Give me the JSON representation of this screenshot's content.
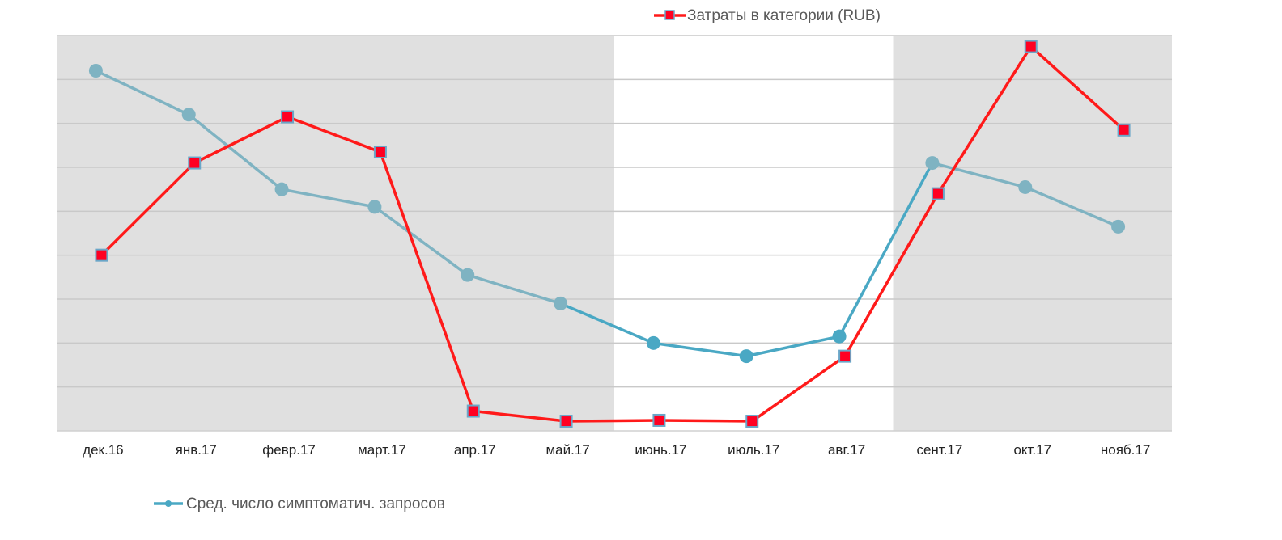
{
  "chart_data": {
    "type": "line",
    "categories": [
      "дек.16",
      "янв.17",
      "февр.17",
      "март.17",
      "апр.17",
      "май.17",
      "июнь.17",
      "июль.17",
      "авг.17",
      "сент.17",
      "окт.17",
      "нояб.17"
    ],
    "series": [
      {
        "name": "Затраты в категории (RUB)",
        "color": "#ff1a1a",
        "marker": "square",
        "marker_fill": "#ff0022",
        "marker_stroke": "#6aa6c8",
        "values": [
          4.0,
          6.1,
          7.15,
          6.35,
          0.45,
          0.22,
          0.24,
          0.22,
          1.7,
          5.4,
          8.75,
          6.85
        ]
      },
      {
        "name": "Сред. число симптоматич. запросов",
        "color": "#7fb3c2",
        "highlight_color": "#4aa8c4",
        "marker": "circle",
        "values": [
          8.2,
          7.2,
          5.5,
          5.1,
          3.55,
          2.9,
          2.0,
          1.7,
          2.15,
          6.1,
          5.55,
          4.65
        ]
      }
    ],
    "highlight_categories": [
      "июнь.17",
      "июль.17",
      "авг.17"
    ],
    "shaded_bands": [
      {
        "from": "дек.16",
        "to": "май.17"
      },
      {
        "from": "сент.17",
        "to": "нояб.17"
      }
    ],
    "ylim": [
      0,
      9
    ],
    "grid": true,
    "legend": [
      {
        "position": "top-center",
        "series": "Затраты в категории (RUB)"
      },
      {
        "position": "bottom-left",
        "series": "Сред. число симптоматич. запросов"
      }
    ],
    "title": "",
    "xlabel": "",
    "ylabel": ""
  },
  "colors": {
    "band": "#e0e0e0",
    "grid": "#c9c9c9",
    "axis": "#d0d0d0"
  }
}
